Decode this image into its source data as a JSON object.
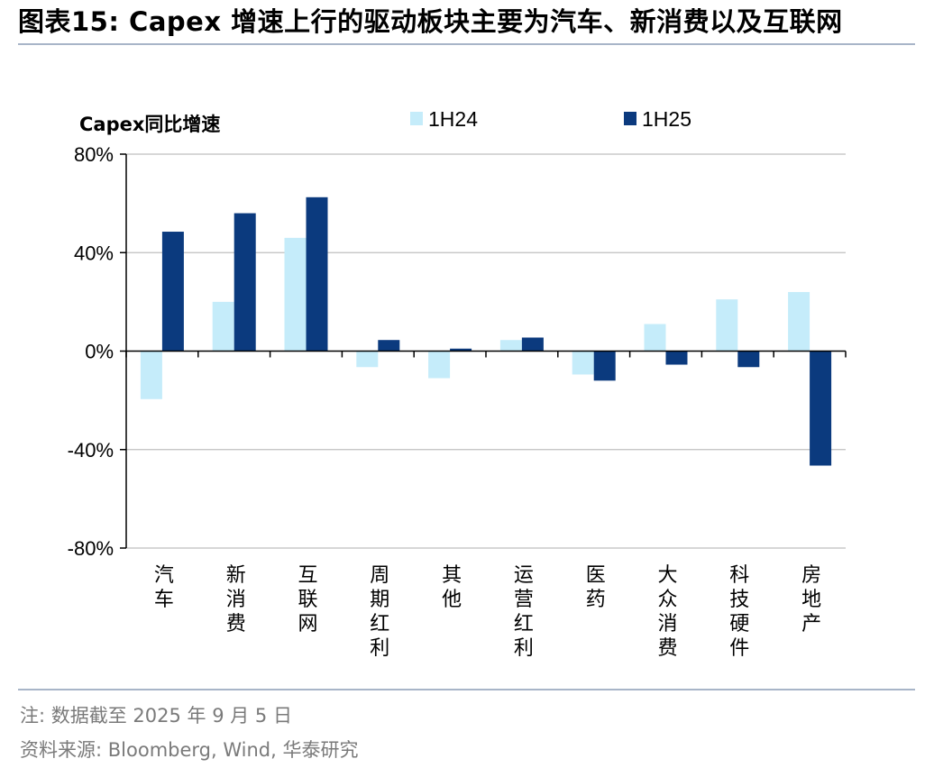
{
  "header": {
    "title": "图表15:  Capex 增速上行的驱动板块主要为汽车、新消费以及互联网"
  },
  "chart_data": {
    "type": "bar",
    "title": "图表15:  Capex 增速上行的驱动板块主要为汽车、新消费以及互联网",
    "ylabel": "Capex同比增速",
    "xlabel": "",
    "ylim": [
      -80,
      80
    ],
    "yticks": [
      80,
      40,
      0,
      -40,
      -80
    ],
    "ytick_labels": [
      "80%",
      "40%",
      "0%",
      "-40%",
      "-80%"
    ],
    "legend_position": "top",
    "categories": [
      "汽车",
      "新消费",
      "互联网",
      "周期红利",
      "其他",
      "运营红利",
      "医药",
      "大众消费",
      "科技硬件",
      "房地产"
    ],
    "series": [
      {
        "name": "1H24",
        "color": "#c5ecfa",
        "values": [
          -19.5,
          20,
          46,
          -6.5,
          -11,
          4.5,
          -9.5,
          11,
          21,
          24
        ]
      },
      {
        "name": "1H25",
        "color": "#0b3a7e",
        "values": [
          48.5,
          56,
          62.5,
          4.5,
          1,
          5.5,
          -12,
          -5.5,
          -6.5,
          -46.5
        ]
      }
    ]
  },
  "footer": {
    "note": "注:  数据截至 2025 年 9 月 5 日",
    "source": "资料来源:  Bloomberg,  Wind,  华泰研究"
  }
}
